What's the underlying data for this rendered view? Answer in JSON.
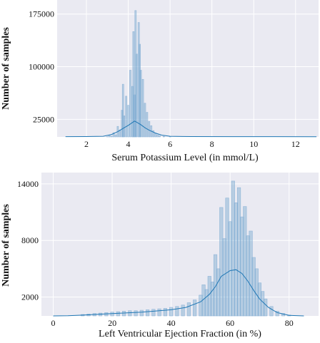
{
  "colors": {
    "panel_bg": "#eaeaf2",
    "grid": "#ffffff",
    "bar_stroke": "#8fb5d8",
    "bar_fill": "rgba(31,119,180,0.25)",
    "kde": "#1f77b4"
  },
  "chart_data": [
    {
      "type": "histogram",
      "xlabel": "Serum Potassium Level (in mmol/L)",
      "ylabel": "Number of samples",
      "xlim": [
        0.6,
        13.1
      ],
      "ylim": [
        0,
        195000
      ],
      "x_ticks": [
        2,
        4,
        6,
        8,
        10,
        12
      ],
      "y_ticks": [
        25000,
        100000,
        175000
      ],
      "x_tick_labels": [
        "2",
        "4",
        "6",
        "8",
        "10",
        "12"
      ],
      "y_tick_labels": [
        "25000",
        "100000",
        "175000"
      ],
      "grid": true,
      "bins": [
        {
          "x": 3.0,
          "count": 300
        },
        {
          "x": 3.1,
          "count": 2500
        },
        {
          "x": 3.2,
          "count": 1000
        },
        {
          "x": 3.3,
          "count": 6000
        },
        {
          "x": 3.4,
          "count": 3000
        },
        {
          "x": 3.5,
          "count": 15000
        },
        {
          "x": 3.6,
          "count": 10000
        },
        {
          "x": 3.7,
          "count": 38000
        },
        {
          "x": 3.75,
          "count": 75000
        },
        {
          "x": 3.8,
          "count": 30000
        },
        {
          "x": 3.9,
          "count": 58000
        },
        {
          "x": 4.0,
          "count": 45000
        },
        {
          "x": 4.1,
          "count": 95000
        },
        {
          "x": 4.2,
          "count": 72000
        },
        {
          "x": 4.25,
          "count": 150000
        },
        {
          "x": 4.3,
          "count": 60000
        },
        {
          "x": 4.35,
          "count": 180000
        },
        {
          "x": 4.4,
          "count": 118000
        },
        {
          "x": 4.5,
          "count": 163000
        },
        {
          "x": 4.55,
          "count": 132000
        },
        {
          "x": 4.6,
          "count": 95000
        },
        {
          "x": 4.7,
          "count": 82000
        },
        {
          "x": 4.8,
          "count": 48000
        },
        {
          "x": 4.9,
          "count": 35000
        },
        {
          "x": 5.0,
          "count": 22000
        },
        {
          "x": 5.1,
          "count": 16000
        },
        {
          "x": 5.2,
          "count": 9000
        },
        {
          "x": 5.3,
          "count": 5500
        },
        {
          "x": 5.4,
          "count": 3000
        },
        {
          "x": 5.5,
          "count": 1800
        },
        {
          "x": 5.7,
          "count": 800
        },
        {
          "x": 6.0,
          "count": 300
        }
      ],
      "kde": {
        "x": [
          1,
          2,
          2.8,
          3.2,
          3.5,
          3.8,
          4.0,
          4.2,
          4.3,
          4.4,
          4.6,
          4.8,
          5.0,
          5.3,
          5.6,
          6.0,
          7.0,
          9.0,
          11.0,
          13.0
        ],
        "y": [
          400,
          500,
          900,
          3500,
          7500,
          13000,
          16500,
          20500,
          22500,
          21000,
          17500,
          13000,
          9500,
          5500,
          2500,
          900,
          500,
          450,
          400,
          300
        ]
      }
    },
    {
      "type": "histogram",
      "xlabel": "Left Ventricular Ejection Fraction (in %)",
      "ylabel": "Number of samples",
      "xlim": [
        -4,
        90
      ],
      "ylim": [
        0,
        15200
      ],
      "x_ticks": [
        0,
        20,
        40,
        60,
        80
      ],
      "y_ticks": [
        2000,
        8000,
        14000
      ],
      "x_tick_labels": [
        "0",
        "20",
        "40",
        "60",
        "80"
      ],
      "y_tick_labels": [
        "2000",
        "8000",
        "14000"
      ],
      "grid": true,
      "bins": [
        {
          "x": 10,
          "count": 150
        },
        {
          "x": 12,
          "count": 200
        },
        {
          "x": 14,
          "count": 250
        },
        {
          "x": 16,
          "count": 300
        },
        {
          "x": 18,
          "count": 350
        },
        {
          "x": 20,
          "count": 400
        },
        {
          "x": 22,
          "count": 450
        },
        {
          "x": 24,
          "count": 500
        },
        {
          "x": 26,
          "count": 550
        },
        {
          "x": 28,
          "count": 550
        },
        {
          "x": 30,
          "count": 600
        },
        {
          "x": 32,
          "count": 650
        },
        {
          "x": 34,
          "count": 700
        },
        {
          "x": 36,
          "count": 750
        },
        {
          "x": 38,
          "count": 800
        },
        {
          "x": 40,
          "count": 900
        },
        {
          "x": 42,
          "count": 1000
        },
        {
          "x": 44,
          "count": 1150
        },
        {
          "x": 46,
          "count": 1400
        },
        {
          "x": 48,
          "count": 1700
        },
        {
          "x": 50,
          "count": 2200
        },
        {
          "x": 51,
          "count": 3300
        },
        {
          "x": 52,
          "count": 2800
        },
        {
          "x": 53,
          "count": 4200
        },
        {
          "x": 54,
          "count": 3600
        },
        {
          "x": 55,
          "count": 6500
        },
        {
          "x": 56,
          "count": 5000
        },
        {
          "x": 57,
          "count": 11500
        },
        {
          "x": 58,
          "count": 8200
        },
        {
          "x": 59,
          "count": 12500
        },
        {
          "x": 60,
          "count": 10000
        },
        {
          "x": 61,
          "count": 14300
        },
        {
          "x": 62,
          "count": 12000
        },
        {
          "x": 63,
          "count": 13600
        },
        {
          "x": 64,
          "count": 10500
        },
        {
          "x": 65,
          "count": 11600
        },
        {
          "x": 66,
          "count": 8500
        },
        {
          "x": 67,
          "count": 9000
        },
        {
          "x": 68,
          "count": 6200
        },
        {
          "x": 69,
          "count": 5000
        },
        {
          "x": 70,
          "count": 3500
        },
        {
          "x": 71,
          "count": 2600
        },
        {
          "x": 72,
          "count": 1800
        },
        {
          "x": 74,
          "count": 1000
        },
        {
          "x": 76,
          "count": 500
        },
        {
          "x": 78,
          "count": 250
        },
        {
          "x": 80,
          "count": 100
        }
      ],
      "kde": {
        "x": [
          0,
          5,
          10,
          20,
          30,
          40,
          45,
          50,
          53,
          55,
          57,
          60,
          62,
          64,
          66,
          68,
          70,
          73,
          76,
          80,
          85
        ],
        "y": [
          0,
          20,
          80,
          250,
          400,
          650,
          900,
          1500,
          2300,
          3100,
          4200,
          4800,
          4900,
          4500,
          3700,
          2700,
          1800,
          900,
          350,
          60,
          0
        ]
      }
    }
  ]
}
